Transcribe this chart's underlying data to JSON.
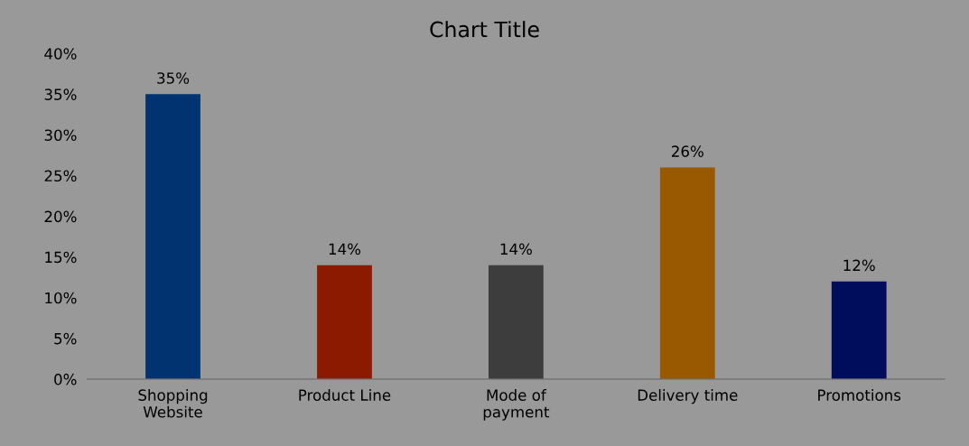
{
  "chart_data": {
    "type": "bar",
    "title": "Chart Title",
    "categories": [
      "Shopping\nWebsite",
      "Product Line",
      "Mode of\npayment",
      "Delivery time",
      "Promotions"
    ],
    "values": [
      35,
      14,
      14,
      26,
      12
    ],
    "colors": [
      "#003370",
      "#8b1a00",
      "#3d3d3d",
      "#995900",
      "#000c5c"
    ],
    "value_labels": [
      "35%",
      "14%",
      "14%",
      "26%",
      "12%"
    ],
    "ylim": [
      0,
      40
    ],
    "yticks": [
      {
        "value": 0,
        "label": "0%"
      },
      {
        "value": 5,
        "label": "5%"
      },
      {
        "value": 10,
        "label": "10%"
      },
      {
        "value": 15,
        "label": "15%"
      },
      {
        "value": 20,
        "label": "20%"
      },
      {
        "value": 25,
        "label": "25%"
      },
      {
        "value": 30,
        "label": "30%"
      },
      {
        "value": 35,
        "label": "35%"
      },
      {
        "value": 40,
        "label": "40%"
      }
    ],
    "grid": false
  }
}
